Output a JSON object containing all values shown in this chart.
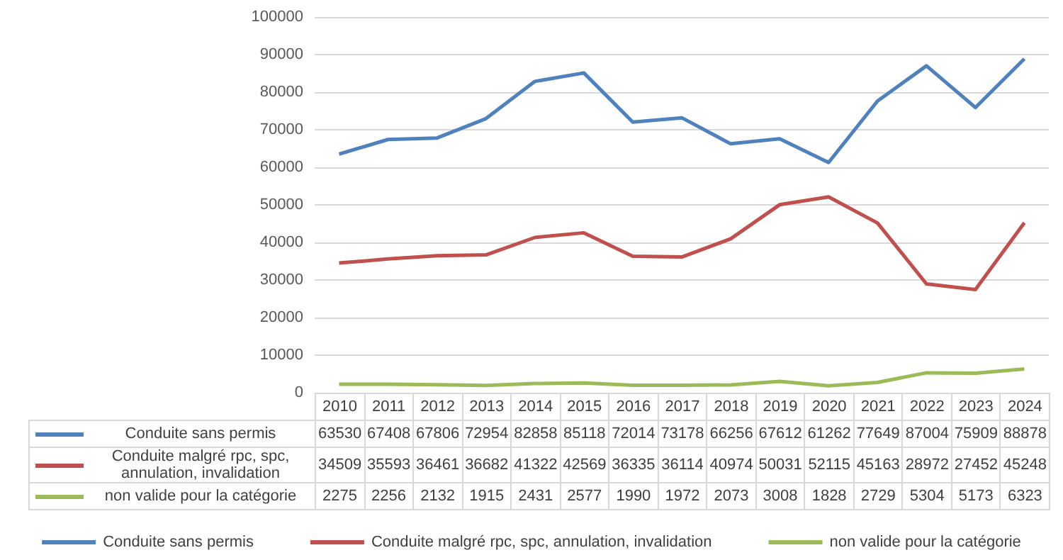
{
  "chart_data": {
    "type": "line",
    "categories": [
      "2010",
      "2011",
      "2012",
      "2013",
      "2014",
      "2015",
      "2016",
      "2017",
      "2018",
      "2019",
      "2020",
      "2021",
      "2022",
      "2023",
      "2024"
    ],
    "series": [
      {
        "name": "Conduite sans permis",
        "color": "#4f81bd",
        "values": [
          63530,
          67408,
          67806,
          72954,
          82858,
          85118,
          72014,
          73178,
          66256,
          67612,
          61262,
          77649,
          87004,
          75909,
          88878
        ]
      },
      {
        "name": "Conduite malgré rpc, spc, annulation, invalidation",
        "color": "#c0504d",
        "values": [
          34509,
          35593,
          36461,
          36682,
          41322,
          42569,
          36335,
          36114,
          40974,
          50031,
          52115,
          45163,
          28972,
          27452,
          45248
        ]
      },
      {
        "name": "non valide pour la catégorie",
        "color": "#9bbb59",
        "values": [
          2275,
          2256,
          2132,
          1915,
          2431,
          2577,
          1990,
          1972,
          2073,
          3008,
          1828,
          2729,
          5304,
          5173,
          6323
        ]
      }
    ],
    "ylim": [
      0,
      100000
    ],
    "yticks": [
      0,
      10000,
      20000,
      30000,
      40000,
      50000,
      60000,
      70000,
      80000,
      90000,
      100000
    ],
    "grid": "y",
    "legend": "bottom",
    "marker": "none",
    "line_style": "solid",
    "data_labels": true
  }
}
